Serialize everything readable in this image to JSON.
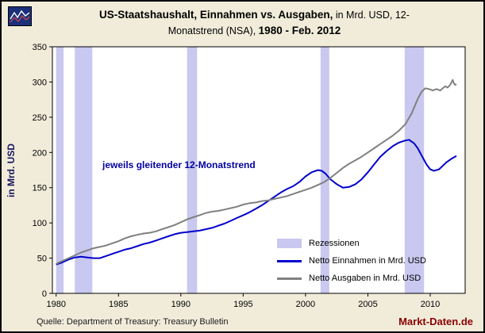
{
  "title": {
    "bold1": "US-Staatshaushalt, Einnahmen vs. Ausgaben,",
    "regular1": " in Mrd. USD, 12-",
    "regular2": "Monatstrend (NSA), ",
    "bold2": "1980 - Feb. 2012"
  },
  "footer": {
    "source": "Quelle: Department of Treasury: Treasury Bulletin",
    "brand": "Markt-Daten.de"
  },
  "colors": {
    "page_background": "#f1ecda",
    "plot_background": "#ffffff",
    "recession_band": "#c8c8f0",
    "receipts_line": "#0000cc",
    "outlays_line": "#808080",
    "annotation": "#0000a0",
    "brand": "#8b0000",
    "axis": "#000000"
  },
  "chart_data": {
    "type": "line",
    "title": "US-Staatshaushalt, Einnahmen vs. Ausgaben, in Mrd. USD, 12-Monatstrend (NSA), 1980 - Feb. 2012",
    "xlabel": "",
    "ylabel": "in Mrd. USD",
    "xlim": [
      1979.7,
      2012.8
    ],
    "ylim": [
      0,
      350
    ],
    "xticks": [
      1980,
      1985,
      1990,
      1995,
      2000,
      2005,
      2010
    ],
    "yticks": [
      0,
      50,
      100,
      150,
      200,
      250,
      300,
      350
    ],
    "grid": false,
    "legend_position": "lower right",
    "annotation": "jeweils gleitender 12-Monatstrend",
    "recessions": [
      [
        1980.0,
        1980.6
      ],
      [
        1981.5,
        1982.9
      ],
      [
        1990.5,
        1991.3
      ],
      [
        2001.2,
        2001.9
      ],
      [
        2007.95,
        2009.5
      ]
    ],
    "legend": [
      {
        "label": "Rezessionen",
        "type": "band",
        "color": "#c8c8f0"
      },
      {
        "label": "Netto Einnahmen in Mrd. USD",
        "type": "line",
        "color": "#0000cc"
      },
      {
        "label": "Netto Ausgaben in Mrd. USD",
        "type": "line",
        "color": "#808080"
      }
    ],
    "series": [
      {
        "name": "Netto Einnahmen in Mrd. USD",
        "color": "#0000cc",
        "points": [
          [
            1980.0,
            41
          ],
          [
            1980.5,
            44
          ],
          [
            1981.0,
            48
          ],
          [
            1981.5,
            51
          ],
          [
            1982.0,
            52
          ],
          [
            1982.5,
            51
          ],
          [
            1983.0,
            50
          ],
          [
            1983.5,
            50
          ],
          [
            1984.0,
            53
          ],
          [
            1984.5,
            56
          ],
          [
            1985.0,
            59
          ],
          [
            1985.5,
            62
          ],
          [
            1986.0,
            64
          ],
          [
            1986.5,
            67
          ],
          [
            1987.0,
            70
          ],
          [
            1987.5,
            72
          ],
          [
            1988.0,
            75
          ],
          [
            1988.5,
            78
          ],
          [
            1989.0,
            81
          ],
          [
            1989.5,
            84
          ],
          [
            1990.0,
            86
          ],
          [
            1990.5,
            87
          ],
          [
            1991.0,
            88
          ],
          [
            1991.5,
            89
          ],
          [
            1992.0,
            91
          ],
          [
            1992.5,
            93
          ],
          [
            1993.0,
            96
          ],
          [
            1993.5,
            99
          ],
          [
            1994.0,
            103
          ],
          [
            1994.5,
            107
          ],
          [
            1995.0,
            111
          ],
          [
            1995.5,
            115
          ],
          [
            1996.0,
            120
          ],
          [
            1996.5,
            125
          ],
          [
            1997.0,
            131
          ],
          [
            1997.5,
            137
          ],
          [
            1998.0,
            143
          ],
          [
            1998.5,
            148
          ],
          [
            1999.0,
            152
          ],
          [
            1999.5,
            158
          ],
          [
            2000.0,
            166
          ],
          [
            2000.5,
            172
          ],
          [
            2001.0,
            175
          ],
          [
            2001.3,
            174
          ],
          [
            2001.6,
            170
          ],
          [
            2002.0,
            162
          ],
          [
            2002.5,
            155
          ],
          [
            2003.0,
            150
          ],
          [
            2003.5,
            151
          ],
          [
            2004.0,
            155
          ],
          [
            2004.5,
            162
          ],
          [
            2005.0,
            172
          ],
          [
            2005.5,
            183
          ],
          [
            2006.0,
            194
          ],
          [
            2006.5,
            202
          ],
          [
            2007.0,
            209
          ],
          [
            2007.5,
            214
          ],
          [
            2008.0,
            217
          ],
          [
            2008.3,
            218
          ],
          [
            2008.7,
            213
          ],
          [
            2009.0,
            206
          ],
          [
            2009.3,
            196
          ],
          [
            2009.7,
            183
          ],
          [
            2010.0,
            176
          ],
          [
            2010.3,
            174
          ],
          [
            2010.7,
            176
          ],
          [
            2011.0,
            181
          ],
          [
            2011.3,
            186
          ],
          [
            2011.7,
            191
          ],
          [
            2012.0,
            194
          ],
          [
            2012.1,
            195
          ]
        ]
      },
      {
        "name": "Netto Ausgaben in Mrd. USD",
        "color": "#808080",
        "points": [
          [
            1980.0,
            42
          ],
          [
            1980.5,
            46
          ],
          [
            1981.0,
            50
          ],
          [
            1981.5,
            54
          ],
          [
            1982.0,
            58
          ],
          [
            1982.5,
            61
          ],
          [
            1983.0,
            64
          ],
          [
            1983.5,
            66
          ],
          [
            1984.0,
            68
          ],
          [
            1984.5,
            71
          ],
          [
            1985.0,
            74
          ],
          [
            1985.5,
            78
          ],
          [
            1986.0,
            81
          ],
          [
            1986.5,
            83
          ],
          [
            1987.0,
            85
          ],
          [
            1987.5,
            86
          ],
          [
            1988.0,
            88
          ],
          [
            1988.5,
            91
          ],
          [
            1989.0,
            94
          ],
          [
            1989.5,
            97
          ],
          [
            1990.0,
            101
          ],
          [
            1990.5,
            105
          ],
          [
            1991.0,
            108
          ],
          [
            1991.5,
            111
          ],
          [
            1992.0,
            114
          ],
          [
            1992.5,
            116
          ],
          [
            1993.0,
            117
          ],
          [
            1993.5,
            119
          ],
          [
            1994.0,
            121
          ],
          [
            1994.5,
            123
          ],
          [
            1995.0,
            126
          ],
          [
            1995.5,
            128
          ],
          [
            1996.0,
            129
          ],
          [
            1996.5,
            131
          ],
          [
            1997.0,
            132
          ],
          [
            1997.5,
            134
          ],
          [
            1998.0,
            136
          ],
          [
            1998.5,
            138
          ],
          [
            1999.0,
            141
          ],
          [
            1999.5,
            144
          ],
          [
            2000.0,
            147
          ],
          [
            2000.5,
            150
          ],
          [
            2001.0,
            154
          ],
          [
            2001.5,
            158
          ],
          [
            2002.0,
            164
          ],
          [
            2002.5,
            171
          ],
          [
            2003.0,
            178
          ],
          [
            2003.5,
            184
          ],
          [
            2004.0,
            189
          ],
          [
            2004.5,
            194
          ],
          [
            2005.0,
            200
          ],
          [
            2005.5,
            206
          ],
          [
            2006.0,
            212
          ],
          [
            2006.5,
            218
          ],
          [
            2007.0,
            224
          ],
          [
            2007.5,
            231
          ],
          [
            2008.0,
            240
          ],
          [
            2008.5,
            255
          ],
          [
            2009.0,
            276
          ],
          [
            2009.3,
            286
          ],
          [
            2009.6,
            291
          ],
          [
            2009.9,
            290
          ],
          [
            2010.2,
            288
          ],
          [
            2010.5,
            290
          ],
          [
            2010.8,
            288
          ],
          [
            2011.0,
            291
          ],
          [
            2011.2,
            294
          ],
          [
            2011.4,
            292
          ],
          [
            2011.6,
            296
          ],
          [
            2011.8,
            303
          ],
          [
            2011.9,
            298
          ],
          [
            2012.0,
            296
          ],
          [
            2012.1,
            297
          ]
        ]
      }
    ]
  }
}
